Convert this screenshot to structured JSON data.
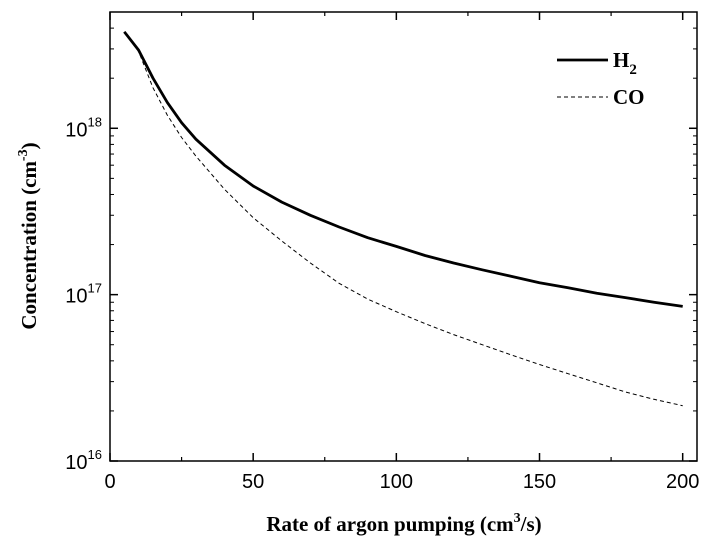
{
  "chart_data": {
    "type": "line",
    "title": "",
    "xlabel": "Rate of argon pumping (cm³/s)",
    "xlabel_parts": {
      "main": "Rate of argon pumping (cm",
      "sup": "3",
      "tail": "/s)"
    },
    "ylabel": "Concentration (cm⁻³)",
    "ylabel_parts": {
      "main": "Concentration (cm",
      "sup": "-3",
      "tail": ")"
    },
    "xlim": [
      0,
      205
    ],
    "ylim": [
      1e+16,
      5e+18
    ],
    "yscale": "log",
    "xticks": [
      0,
      50,
      100,
      150,
      200
    ],
    "xtick_labels": [
      "0",
      "50",
      "100",
      "150",
      "200"
    ],
    "yticks": [
      1e+16,
      1e+17,
      1e+18
    ],
    "ytick_labels": [
      {
        "base": "10",
        "exp": "16"
      },
      {
        "base": "10",
        "exp": "17"
      },
      {
        "base": "10",
        "exp": "18"
      }
    ],
    "grid": false,
    "legend": "top-right",
    "series": [
      {
        "name": "H2",
        "name_parts": {
          "main": "H",
          "sub": "2"
        },
        "style": "solid",
        "color": "#000000",
        "x": [
          5,
          10,
          15,
          20,
          25,
          30,
          40,
          50,
          60,
          70,
          80,
          90,
          100,
          110,
          120,
          130,
          140,
          150,
          160,
          170,
          180,
          190,
          200
        ],
        "y": [
          3.8e+18,
          2.95e+18,
          2e+18,
          1.43e+18,
          1.08e+18,
          8.6e+17,
          6e+17,
          4.5e+17,
          3.6e+17,
          3e+17,
          2.55e+17,
          2.2e+17,
          1.95e+17,
          1.72e+17,
          1.55e+17,
          1.41e+17,
          1.29e+17,
          1.18e+17,
          1.1e+17,
          1.02e+17,
          9.6e+16,
          9e+16,
          8.5e+16
        ]
      },
      {
        "name": "CO",
        "style": "dashed",
        "color": "#000000",
        "x": [
          5,
          10,
          15,
          20,
          25,
          30,
          40,
          50,
          60,
          70,
          80,
          90,
          100,
          110,
          120,
          130,
          140,
          150,
          160,
          170,
          180,
          190,
          200
        ],
        "y": [
          3.8e+18,
          2.9e+18,
          1.75e+18,
          1.2e+18,
          8.8e+17,
          6.8e+17,
          4.3e+17,
          2.9e+17,
          2.1e+17,
          1.55e+17,
          1.17e+17,
          9.4e+16,
          7.9e+16,
          6.7e+16,
          5.75e+16,
          5e+16,
          4.35e+16,
          3.8e+16,
          3.35e+16,
          2.95e+16,
          2.6e+16,
          2.35e+16,
          2.15e+16
        ]
      }
    ]
  }
}
